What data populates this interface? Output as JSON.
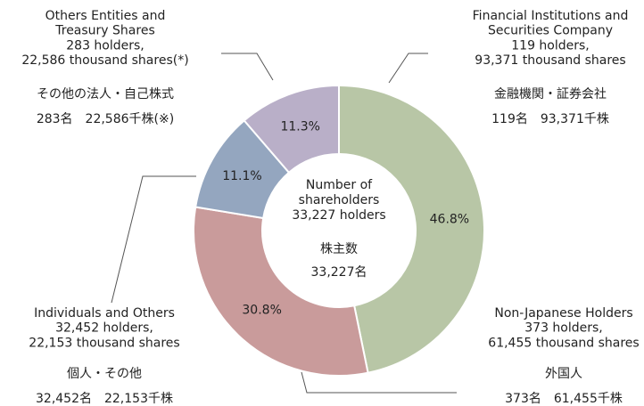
{
  "chart_data": {
    "type": "pie",
    "labels": [
      [
        "Financial Institutions and",
        "Securities Company",
        "119 holders,",
        "93,371 thousand shares"
      ],
      [
        "Non-Japanese Holders",
        "373 holders,",
        "61,455 thousand shares"
      ],
      [
        "Individuals and Others",
        "32,452 holders,",
        "22,153 thousand shares"
      ],
      [
        "Others Entities and",
        "Treasury Shares",
        "283 holders,",
        "22,586 thousand shares(*)"
      ]
    ],
    "labels_ja": [
      [
        "金融機関・証券会社",
        "119名　93,371千株"
      ],
      [
        "外国人",
        "373名　61,455千株"
      ],
      [
        "個人・その他",
        "32,452名　22,153千株"
      ],
      [
        "その他の法人・自己株式",
        "283名　22,586千株(※)"
      ]
    ],
    "values": [
      46.8,
      30.8,
      11.1,
      11.3
    ],
    "value_labels": [
      "46.8%",
      "30.8%",
      "11.1%",
      "11.3%"
    ],
    "colors": [
      "#b8c6a6",
      "#c99b9b",
      "#94a6bf",
      "#b9afc8"
    ],
    "center_label": [
      "Number of",
      "shareholders",
      "33,227 holders"
    ],
    "center_label_ja": [
      "株主数",
      "33,227名"
    ]
  }
}
